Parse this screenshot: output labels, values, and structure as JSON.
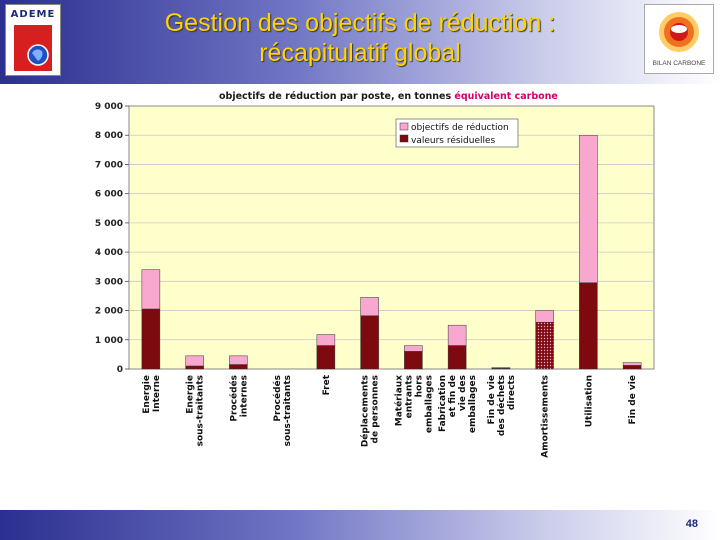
{
  "header": {
    "title_line1": "Gestion des objectifs de réduction :",
    "title_line2": "récapitulatif global",
    "ademe_logo_text": "ADEME",
    "bilan_logo_text": "BILAN CARBONE"
  },
  "footer": {
    "page_number": "48"
  },
  "colors": {
    "objective": "#f8a8cf",
    "residual": "#7d0a0f",
    "plot_background": "#ffffcc",
    "title_accent": "#d4006a"
  },
  "chart_data": {
    "type": "bar",
    "stacked": true,
    "title": "objectifs de réduction par poste, en tonnes ",
    "title_accent": "équivalent carbone",
    "categories": [
      "Energie Interne",
      "Energie sous-traitants",
      "Procédés internes",
      "Procédés sous-traitants",
      "Fret",
      "Déplacements de personnes",
      "Matériaux entrants hors emballages",
      "Fabrication et fin de vie des emballages",
      "Fin de vie des déchets directs",
      "Amortissements",
      "Utilisation",
      "Fin de vie"
    ],
    "series": [
      {
        "name": "valeurs résiduelles",
        "values": [
          2050,
          100,
          150,
          0,
          800,
          1820,
          600,
          800,
          20,
          1600,
          2950,
          120
        ]
      },
      {
        "name": "objectifs de réduction",
        "values": [
          1350,
          350,
          300,
          0,
          380,
          630,
          200,
          700,
          30,
          400,
          5050,
          100
        ]
      }
    ],
    "ylim": [
      0,
      9000
    ],
    "yticks": [
      "0",
      "1 000",
      "2 000",
      "3 000",
      "4 000",
      "5 000",
      "6 000",
      "7 000",
      "8 000",
      "9 000"
    ],
    "grid": true,
    "legend_position": "top-right"
  }
}
